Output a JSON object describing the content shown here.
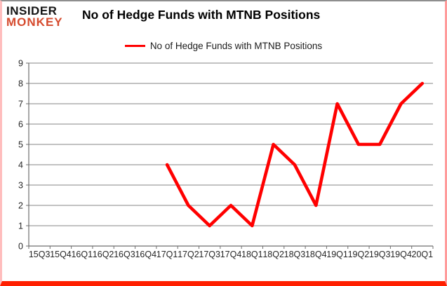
{
  "header": {
    "logo_line1": "INSIDER",
    "logo_line2": "MONKEY",
    "title": "No of Hedge Funds with MTNB Positions"
  },
  "legend": {
    "label": "No of Hedge Funds with MTNB Positions",
    "color": "#ff0000"
  },
  "chart_data": {
    "type": "line",
    "title": "No of Hedge Funds with MTNB Positions",
    "categories": [
      "15Q3",
      "15Q4",
      "16Q1",
      "16Q2",
      "16Q3",
      "16Q4",
      "17Q1",
      "17Q2",
      "17Q3",
      "17Q4",
      "18Q1",
      "18Q2",
      "18Q3",
      "18Q4",
      "19Q1",
      "19Q2",
      "19Q3",
      "19Q4",
      "20Q1"
    ],
    "series": [
      {
        "name": "No of Hedge Funds with MTNB Positions",
        "color": "#ff0000",
        "values": [
          null,
          null,
          null,
          null,
          null,
          null,
          4,
          2,
          1,
          2,
          1,
          5,
          4,
          2,
          7,
          5,
          5,
          7,
          8
        ]
      }
    ],
    "xlabel": "",
    "ylabel": "",
    "ylim": [
      0,
      9
    ],
    "yticks": [
      0,
      1,
      2,
      3,
      4,
      5,
      6,
      7,
      8,
      9
    ],
    "grid": "horizontal",
    "legend_position": "top-center"
  },
  "colors": {
    "series_red": "#ff0000",
    "logo_black": "#141414",
    "logo_red": "#d54a2d",
    "grid": "#848484",
    "axis": "#6e6e6e",
    "tick_text": "#262626",
    "border_bottom": "#ff1f00"
  }
}
